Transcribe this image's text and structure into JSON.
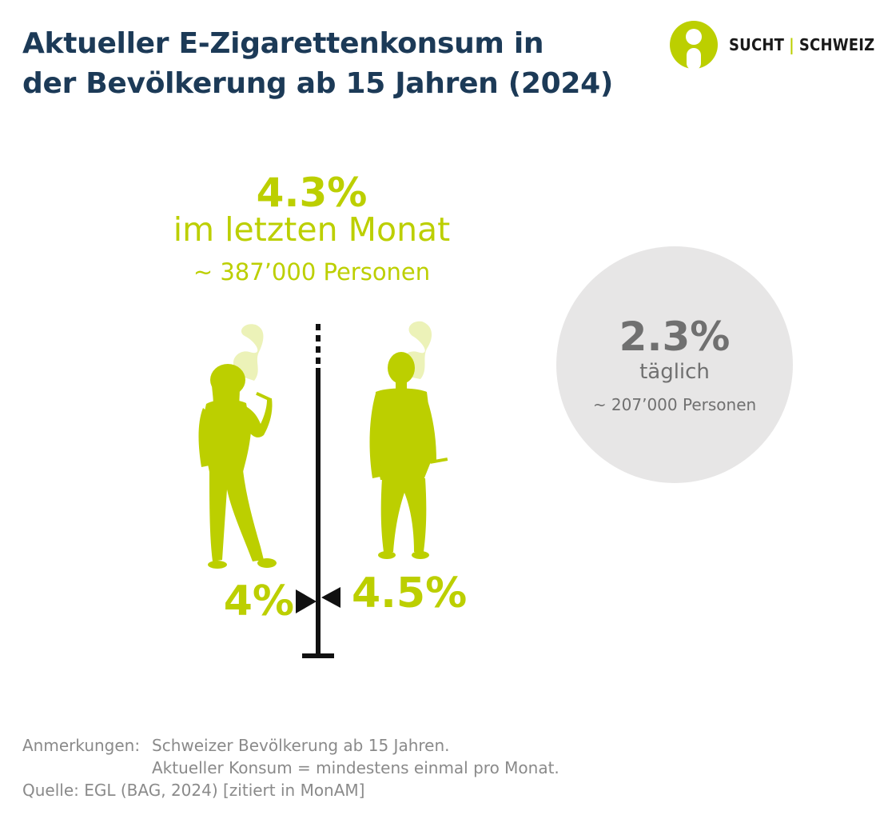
{
  "title": {
    "line1": "Aktueller E-Zigarettenkonsum in",
    "line2": "der Bevölkerung ab 15 Jahren (2024)"
  },
  "logo": {
    "left_word": "SUCHT",
    "separator": "|",
    "right_word": "SCHWEIZ",
    "icon": "person-circle-logo-icon"
  },
  "headline": {
    "percent": "4.3%",
    "label": "im letzten Monat",
    "persons": "~ 387’000 Personen"
  },
  "daily": {
    "percent": "2.3%",
    "label": "täglich",
    "persons": "~ 207’000 Personen"
  },
  "gender": {
    "female_percent": "4%",
    "male_percent": "4.5%",
    "female_icon": "woman-smoking-icon",
    "male_icon": "man-smoking-icon"
  },
  "notes": {
    "key": "Anmerkungen:",
    "line1": "Schweizer Bevölkerung ab 15 Jahren.",
    "line2": "Aktueller Konsum = mindestens einmal pro Monat.",
    "source": "Quelle: EGL (BAG, 2024) [zitiert in MonAM]"
  },
  "colors": {
    "accent": "#bccf00",
    "title": "#1c3a57",
    "circle": "#e7e6e6",
    "circle_text": "#707070",
    "notes": "#8a8a8a",
    "scale": "#111111"
  }
}
